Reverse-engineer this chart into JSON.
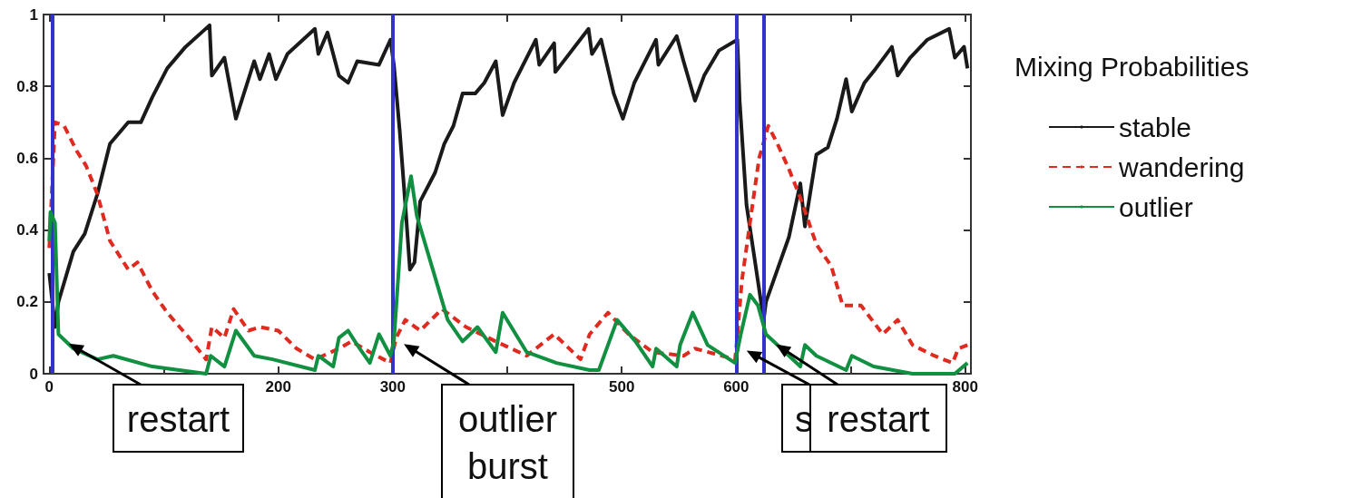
{
  "chart_data": {
    "type": "line",
    "xlim": [
      -5,
      805
    ],
    "ylim": [
      0,
      1
    ],
    "xticks": [
      0,
      {
        "value": 100,
        "label": null
      },
      200,
      300,
      {
        "value": 400,
        "label": null
      },
      500,
      600,
      {
        "value": 700,
        "label": null
      },
      800
    ],
    "yticks": [
      0,
      0.2,
      0.4,
      0.6,
      0.8,
      1
    ],
    "grid": false,
    "legend": "right",
    "legend_title": "Mixing Probabilities",
    "series": [
      {
        "name": "stable",
        "color": "#1a1a1a",
        "line_style": "solid",
        "x": [
          0,
          5,
          8,
          21,
          31,
          42,
          53,
          69,
          80,
          90,
          103,
          119,
          140,
          142,
          153,
          163,
          179,
          184,
          192,
          198,
          208,
          232,
          235,
          243,
          253,
          261,
          269,
          288,
          298,
          301,
          306,
          311,
          315,
          319,
          324,
          337,
          345,
          353,
          361,
          372,
          380,
          390,
          396,
          406,
          425,
          428,
          441,
          442,
          471,
          474,
          482,
          493,
          501,
          511,
          530,
          532,
          548,
          554,
          564,
          572,
          585,
          601,
          603,
          609,
          617,
          624,
          626,
          636,
          646,
          656,
          660,
          670,
          680,
          688,
          696,
          701,
          712,
          722,
          736,
          741,
          752,
          767,
          786,
          791,
          799,
          802
        ],
        "values": [
          0.28,
          0.13,
          0.2,
          0.34,
          0.39,
          0.5,
          0.64,
          0.7,
          0.7,
          0.77,
          0.85,
          0.91,
          0.97,
          0.83,
          0.88,
          0.71,
          0.87,
          0.82,
          0.89,
          0.82,
          0.89,
          0.96,
          0.89,
          0.95,
          0.83,
          0.81,
          0.87,
          0.86,
          0.93,
          0.86,
          0.68,
          0.47,
          0.29,
          0.31,
          0.48,
          0.56,
          0.64,
          0.69,
          0.78,
          0.78,
          0.81,
          0.87,
          0.72,
          0.81,
          0.93,
          0.86,
          0.92,
          0.84,
          0.96,
          0.89,
          0.93,
          0.78,
          0.71,
          0.81,
          0.93,
          0.86,
          0.94,
          0.87,
          0.76,
          0.83,
          0.9,
          0.93,
          0.76,
          0.47,
          0.3,
          0.15,
          0.2,
          0.29,
          0.38,
          0.53,
          0.41,
          0.61,
          0.63,
          0.71,
          0.82,
          0.73,
          0.81,
          0.85,
          0.91,
          0.83,
          0.88,
          0.93,
          0.96,
          0.88,
          0.91,
          0.85
        ]
      },
      {
        "name": "wandering",
        "color": "#e02a20",
        "line_style": "dashed",
        "x": [
          0,
          5,
          13,
          24,
          32,
          42,
          53,
          69,
          77,
          90,
          103,
          122,
          137,
          142,
          153,
          161,
          174,
          184,
          200,
          216,
          232,
          253,
          264,
          280,
          298,
          303,
          311,
          324,
          343,
          364,
          390,
          417,
          441,
          464,
          472,
          488,
          506,
          527,
          554,
          564,
          599,
          600,
          605,
          612,
          620,
          628,
          636,
          646,
          656,
          670,
          683,
          693,
          709,
          728,
          741,
          754,
          773,
          789,
          794,
          802
        ],
        "values": [
          0.35,
          0.7,
          0.69,
          0.62,
          0.58,
          0.5,
          0.37,
          0.29,
          0.31,
          0.23,
          0.17,
          0.1,
          0.04,
          0.13,
          0.1,
          0.18,
          0.12,
          0.13,
          0.12,
          0.07,
          0.04,
          0.07,
          0.09,
          0.06,
          0.03,
          0.1,
          0.15,
          0.12,
          0.18,
          0.13,
          0.09,
          0.05,
          0.11,
          0.04,
          0.11,
          0.17,
          0.11,
          0.06,
          0.05,
          0.07,
          0.04,
          0.07,
          0.26,
          0.42,
          0.6,
          0.69,
          0.64,
          0.57,
          0.49,
          0.36,
          0.3,
          0.19,
          0.19,
          0.11,
          0.15,
          0.08,
          0.05,
          0.03,
          0.07,
          0.08
        ]
      },
      {
        "name": "outlier",
        "color": "#109040",
        "line_style": "solid",
        "x": [
          0,
          1,
          5,
          8,
          21,
          42,
          56,
          90,
          137,
          141,
          153,
          163,
          179,
          195,
          232,
          235,
          248,
          253,
          261,
          269,
          280,
          288,
          298,
          301,
          308,
          316,
          321,
          335,
          348,
          361,
          374,
          390,
          396,
          417,
          443,
          472,
          480,
          496,
          512,
          527,
          530,
          548,
          551,
          562,
          575,
          599,
          604,
          612,
          619,
          626,
          636,
          656,
          660,
          670,
          696,
          701,
          720,
          754,
          791,
          802
        ],
        "values": [
          0.37,
          0.45,
          0.42,
          0.11,
          0.07,
          0.04,
          0.05,
          0.02,
          0.0,
          0.05,
          0.02,
          0.12,
          0.05,
          0.04,
          0.01,
          0.05,
          0.02,
          0.1,
          0.12,
          0.08,
          0.03,
          0.11,
          0.05,
          0.09,
          0.42,
          0.55,
          0.44,
          0.29,
          0.15,
          0.09,
          0.13,
          0.06,
          0.17,
          0.06,
          0.03,
          0.01,
          0.01,
          0.15,
          0.09,
          0.02,
          0.07,
          0.02,
          0.08,
          0.17,
          0.08,
          0.03,
          0.11,
          0.22,
          0.19,
          0.11,
          0.08,
          0.02,
          0.08,
          0.05,
          0.01,
          0.05,
          0.02,
          0.0,
          0.0,
          0.03
        ]
      }
    ],
    "ref_lines": [
      {
        "axis": "x",
        "value": 3,
        "color": "#3333cc"
      },
      {
        "axis": "x",
        "value": 300,
        "color": "#3333cc"
      },
      {
        "axis": "x",
        "value": 600,
        "color": "#3333cc"
      },
      {
        "axis": "x",
        "value": 624,
        "color": "#3333cc"
      }
    ],
    "annotations": [
      {
        "text": "restart",
        "x": 8,
        "y": 0.1
      },
      {
        "text": "outlier\nburst",
        "x": 301,
        "y": 0.1
      },
      {
        "text": "s",
        "x": 600,
        "y": 0.08
      },
      {
        "text": "restart",
        "x": 626,
        "y": 0.1
      }
    ]
  }
}
